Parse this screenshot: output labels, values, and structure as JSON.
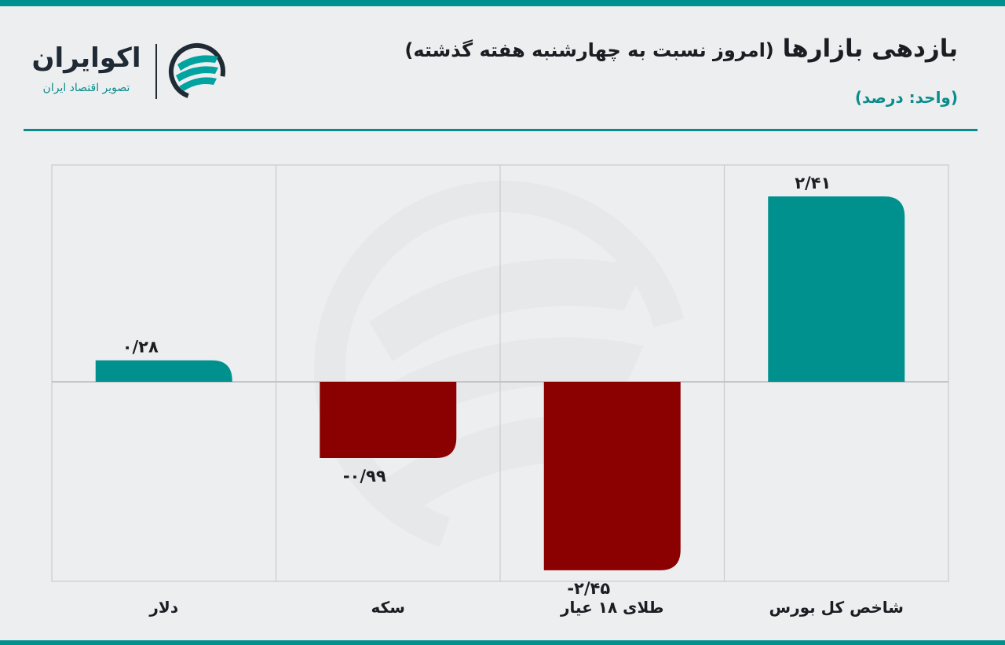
{
  "header": {
    "title": "بازدهی بازارها",
    "subtitle": "(امروز نسبت به چهارشنبه هفته گذشته)",
    "unit": "(واحد: درصد)"
  },
  "logo": {
    "name": "اکوایران",
    "tagline": "تصویر اقتصاد ایران"
  },
  "colors": {
    "positive": "#00918f",
    "negative": "#8b0000",
    "accent": "#0b8c8a"
  },
  "chart_data": {
    "type": "bar",
    "categories": [
      "شاخص کل بورس",
      "طلای ۱۸ عیار",
      "سکه",
      "دلار"
    ],
    "values": [
      2.41,
      -2.45,
      -0.99,
      0.28
    ],
    "value_labels": [
      "۲/۴۱",
      "-۲/۴۵",
      "-۰/۹۹",
      "۰/۲۸"
    ],
    "category_order": "right-to-left",
    "ylim": [
      -2.6,
      2.8
    ],
    "grid": true,
    "legend": "none"
  }
}
